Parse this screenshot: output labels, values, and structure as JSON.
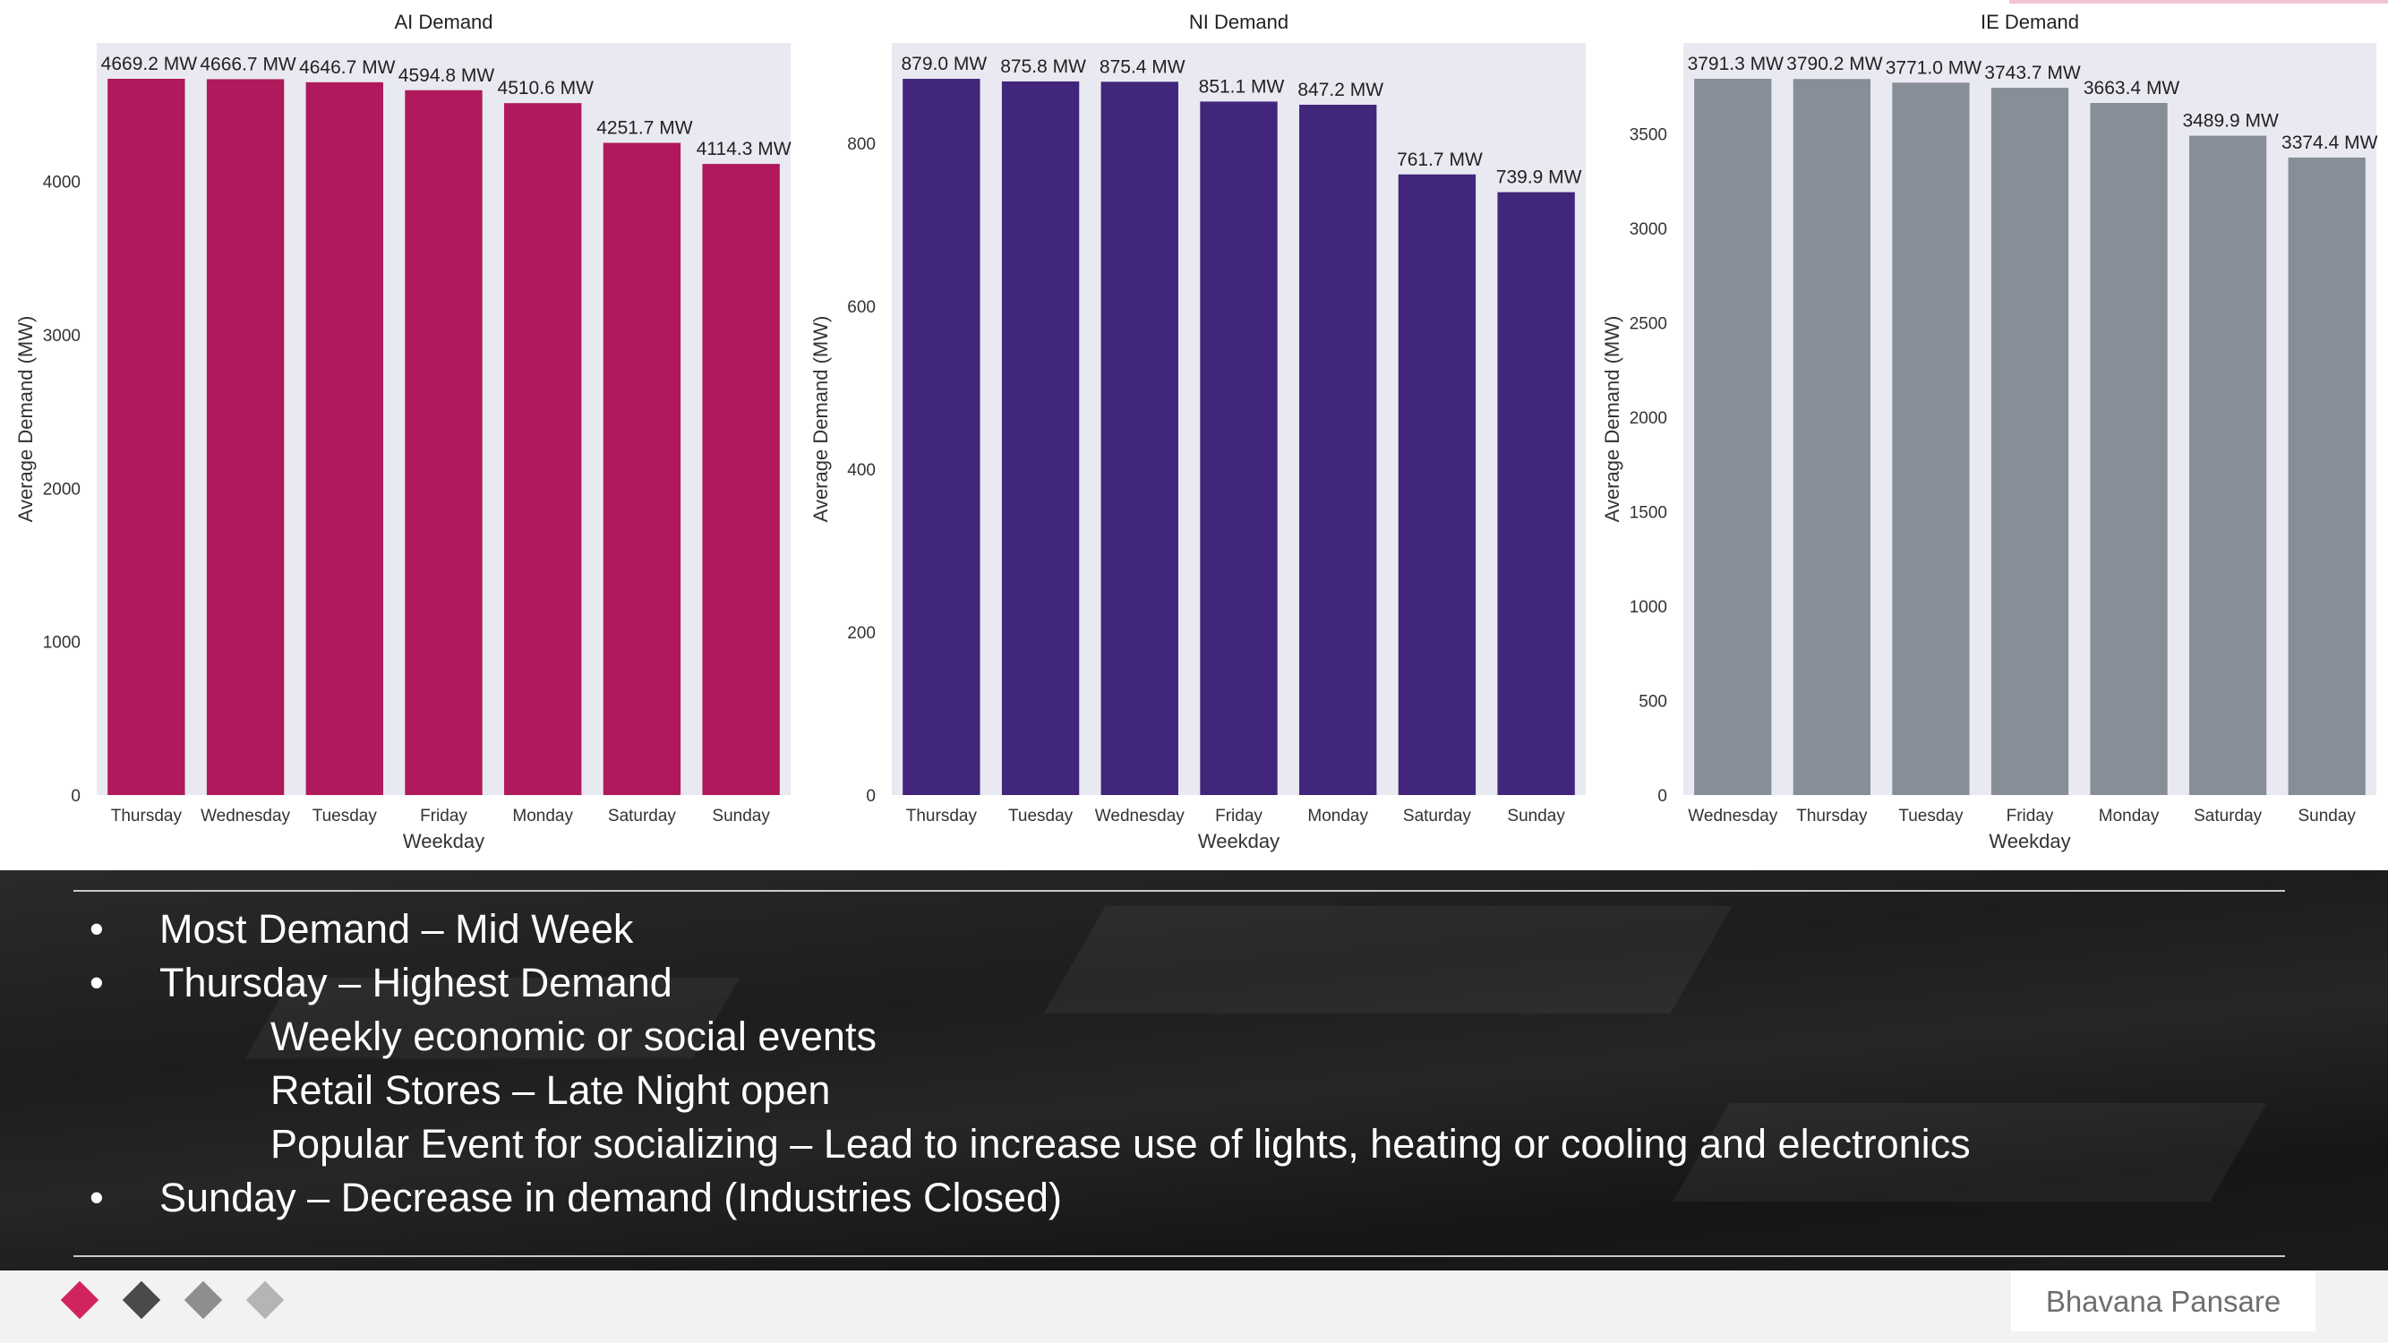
{
  "chart_data": [
    {
      "type": "bar",
      "title": "AI Demand",
      "xlabel": "Weekday",
      "ylabel": "Average Demand (MW)",
      "categories": [
        "Thursday",
        "Wednesday",
        "Tuesday",
        "Friday",
        "Monday",
        "Saturday",
        "Sunday"
      ],
      "values": [
        4669.2,
        4666.7,
        4646.7,
        4594.8,
        4510.6,
        4251.7,
        4114.3
      ],
      "labels": [
        "4669.2 MW",
        "4666.7 MW",
        "4646.7 MW",
        "4594.8 MW",
        "4510.6 MW",
        "4251.7 MW",
        "4114.3 MW"
      ],
      "yticks": [
        0,
        1000,
        2000,
        3000,
        4000
      ],
      "ylim": [
        0,
        4902.7
      ],
      "color": "#b0195c",
      "grid": false
    },
    {
      "type": "bar",
      "title": "NI Demand",
      "xlabel": "Weekday",
      "ylabel": "Average Demand (MW)",
      "categories": [
        "Thursday",
        "Tuesday",
        "Wednesday",
        "Friday",
        "Monday",
        "Saturday",
        "Sunday"
      ],
      "values": [
        879.0,
        875.8,
        875.4,
        851.1,
        847.2,
        761.7,
        739.9
      ],
      "labels": [
        "879.0 MW",
        "875.8 MW",
        "875.4 MW",
        "851.1 MW",
        "847.2 MW",
        "761.7 MW",
        "739.9 MW"
      ],
      "yticks": [
        0,
        200,
        400,
        600,
        800
      ],
      "ylim": [
        0,
        923.0
      ],
      "color": "#41267c",
      "grid": false
    },
    {
      "type": "bar",
      "title": "IE Demand",
      "xlabel": "Weekday",
      "ylabel": "Average Demand (MW)",
      "categories": [
        "Wednesday",
        "Thursday",
        "Tuesday",
        "Friday",
        "Monday",
        "Saturday",
        "Sunday"
      ],
      "values": [
        3791.3,
        3790.2,
        3771.0,
        3743.7,
        3663.4,
        3489.9,
        3374.4
      ],
      "labels": [
        "3791.3 MW",
        "3790.2 MW",
        "3771.0 MW",
        "3743.7 MW",
        "3663.4 MW",
        "3489.9 MW",
        "3374.4 MW"
      ],
      "yticks": [
        0,
        500,
        1000,
        1500,
        2000,
        2500,
        3000,
        3500
      ],
      "ylim": [
        0,
        3980.9
      ],
      "color": "#878e98",
      "grid": false
    }
  ],
  "notes": {
    "bullets": [
      {
        "kind": "bullet",
        "marker": "•",
        "text": "Most Demand – Mid Week"
      },
      {
        "kind": "bullet",
        "marker": "•",
        "text": "Thursday – Highest Demand"
      },
      {
        "kind": "sub",
        "text": "Weekly economic or social events"
      },
      {
        "kind": "sub",
        "text": "Retail Stores – Late Night open"
      },
      {
        "kind": "sub",
        "text": "Popular Event for socializing – Lead to increase use of lights, heating or cooling and electronics"
      },
      {
        "kind": "bullet",
        "marker": "•",
        "text": "Sunday – Decrease in demand (Industries Closed)"
      }
    ]
  },
  "footer": {
    "author": "Bhavana Pansare",
    "diamond_colors": [
      "#d0245e",
      "#4a4a4a",
      "#8e8e8e",
      "#b5b5b5"
    ]
  }
}
